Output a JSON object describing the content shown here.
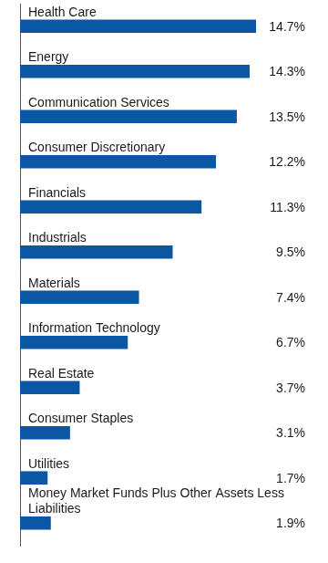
{
  "chart_data": {
    "type": "bar",
    "orientation": "horizontal",
    "categories": [
      "Health Care",
      "Energy",
      "Communication Services",
      "Consumer Discretionary",
      "Financials",
      "Industrials",
      "Materials",
      "Information Technology",
      "Real Estate",
      "Consumer Staples",
      "Utilities",
      "Money Market Funds Plus Other Assets Less Liabilities"
    ],
    "values": [
      14.7,
      14.3,
      13.5,
      12.2,
      11.3,
      9.5,
      7.4,
      6.7,
      3.7,
      3.1,
      1.7,
      1.9
    ],
    "value_labels": [
      "14.7%",
      "14.3%",
      "13.5%",
      "12.2%",
      "11.3%",
      "9.5%",
      "7.4%",
      "6.7%",
      "3.7%",
      "3.1%",
      "1.7%",
      "1.9%"
    ],
    "color": "#0b57a4",
    "xlim": [
      0,
      15
    ],
    "data_labels": true,
    "tick_labels": "y",
    "grid": false
  }
}
